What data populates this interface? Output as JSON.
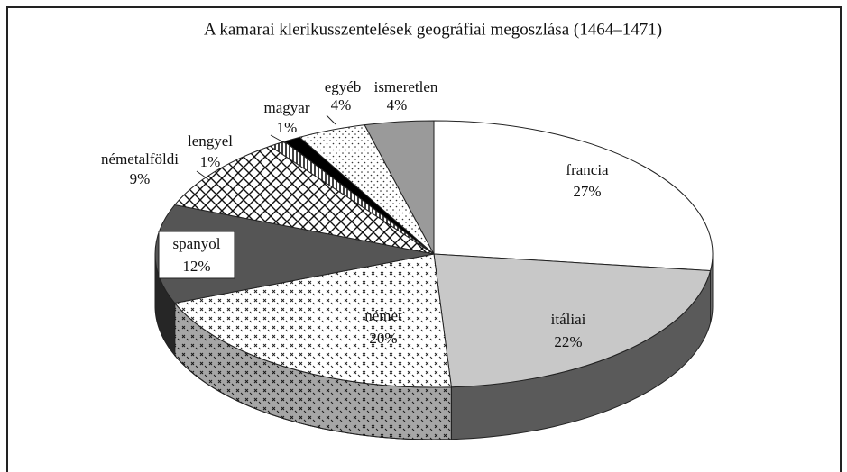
{
  "chart_data": {
    "type": "pie3d",
    "title": "A kamarai klerikusszentelések geográfiai megoszlása (1464–1471)",
    "categories": [
      "francia",
      "itáliai",
      "német",
      "spanyol",
      "németalföldi",
      "lengyel",
      "magyar",
      "egyéb",
      "ismeretlen"
    ],
    "values": [
      27,
      22,
      20,
      12,
      9,
      1,
      1,
      4,
      4
    ],
    "value_labels": [
      "27%",
      "22%",
      "20%",
      "12%",
      "9%",
      "1%",
      "1%",
      "4%",
      "4%"
    ],
    "colors": [
      "#ffffff",
      "#c8c8c8",
      "#ffffff",
      "#555555",
      "#ffffff",
      "#ffffff",
      "#000000",
      "#ffffff",
      "#9a9a9a"
    ],
    "patterns": [
      null,
      null,
      "crosses",
      null,
      "crosshatch",
      "stripes",
      null,
      "dots",
      null
    ]
  }
}
